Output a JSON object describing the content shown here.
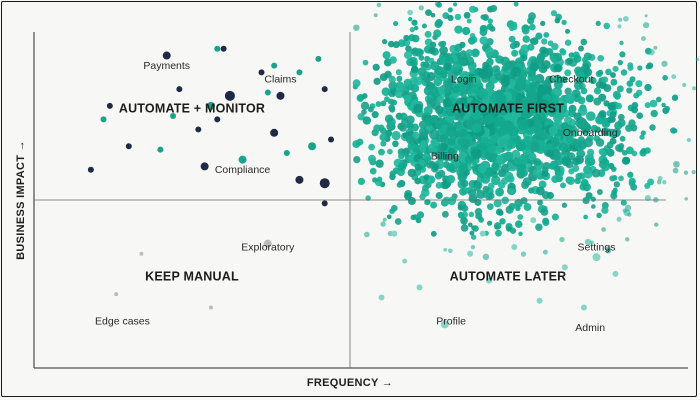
{
  "chart_data": {
    "type": "scatter",
    "title": "",
    "xlabel": "FREQUENCY →",
    "ylabel": "BUSINESS IMPACT →",
    "xlim": [
      0,
      100
    ],
    "ylim": [
      0,
      100
    ],
    "divider": {
      "x": 50,
      "y": 50
    },
    "quadrants": [
      {
        "id": "automate-monitor",
        "label": "AUTOMATE + MONITOR",
        "x": 25,
        "y": 76
      },
      {
        "id": "automate-first",
        "label": "AUTOMATE FIRST",
        "x": 75,
        "y": 76
      },
      {
        "id": "keep-manual",
        "label": "KEEP MANUAL",
        "x": 25,
        "y": 26
      },
      {
        "id": "automate-later",
        "label": "AUTOMATE LATER",
        "x": 75,
        "y": 26
      }
    ],
    "annotations": [
      {
        "text": "Payments",
        "x": 21,
        "y": 89
      },
      {
        "text": "Claims",
        "x": 39,
        "y": 85
      },
      {
        "text": "Compliance",
        "x": 33,
        "y": 58
      },
      {
        "text": "Login",
        "x": 68,
        "y": 85
      },
      {
        "text": "Checkout",
        "x": 85,
        "y": 85
      },
      {
        "text": "Billing",
        "x": 65,
        "y": 62
      },
      {
        "text": "Onboarding",
        "x": 88,
        "y": 69
      },
      {
        "text": "Exploratory",
        "x": 37,
        "y": 35
      },
      {
        "text": "Settings",
        "x": 89,
        "y": 35
      },
      {
        "text": "Edge cases",
        "x": 14,
        "y": 13
      },
      {
        "text": "Profile",
        "x": 66,
        "y": 13
      },
      {
        "text": "Admin",
        "x": 88,
        "y": 11
      }
    ],
    "series": [
      {
        "name": "automate-monitor",
        "color": "#1f2a44",
        "points": [
          [
            21,
            93,
            4
          ],
          [
            30,
            95,
            3
          ],
          [
            31,
            81,
            5
          ],
          [
            23,
            83,
            3
          ],
          [
            39,
            81,
            4
          ],
          [
            46,
            83,
            3
          ],
          [
            12,
            78,
            3
          ],
          [
            26,
            71,
            3
          ],
          [
            38,
            70,
            4
          ],
          [
            15,
            66,
            3
          ],
          [
            27,
            60,
            4
          ],
          [
            47,
            68,
            3
          ],
          [
            9,
            59,
            3
          ],
          [
            42,
            56,
            4
          ],
          [
            46,
            55,
            5
          ],
          [
            29,
            74,
            3
          ],
          [
            46,
            49,
            3
          ],
          [
            36,
            88,
            3
          ]
        ]
      },
      {
        "name": "automate-monitor-accent",
        "color": "#1aa38c",
        "points": [
          [
            29,
            95,
            3
          ],
          [
            42,
            88,
            3
          ],
          [
            28,
            78,
            4
          ],
          [
            37,
            82,
            3
          ],
          [
            22,
            75,
            3
          ],
          [
            20,
            65,
            3
          ],
          [
            33,
            62,
            4
          ],
          [
            40,
            64,
            3
          ],
          [
            44,
            66,
            4
          ],
          [
            38,
            90,
            3
          ],
          [
            45,
            92,
            3
          ],
          [
            11,
            74,
            3
          ]
        ]
      },
      {
        "name": "automate-first-seed",
        "color": "#12a88e",
        "points": [
          [
            75,
            72,
            6
          ],
          [
            72,
            74,
            5
          ],
          [
            78,
            76,
            6
          ],
          [
            70,
            78,
            4
          ],
          [
            80,
            70,
            5
          ],
          [
            68,
            70,
            4
          ],
          [
            74,
            80,
            5
          ],
          [
            82,
            78,
            4
          ],
          [
            77,
            66,
            5
          ],
          [
            66,
            76,
            4
          ],
          [
            71,
            66,
            4
          ],
          [
            84,
            72,
            4
          ],
          [
            62,
            70,
            3
          ],
          [
            86,
            66,
            3
          ],
          [
            73,
            60,
            4
          ],
          [
            79,
            84,
            4
          ],
          [
            69,
            84,
            3
          ],
          [
            88,
            80,
            3
          ]
        ]
      },
      {
        "name": "automate-later",
        "color": "#86d6c7",
        "points": [
          [
            65,
            13,
            4
          ],
          [
            87,
            18,
            3
          ],
          [
            89,
            33,
            4
          ],
          [
            71,
            40,
            3
          ],
          [
            79,
            44,
            3
          ],
          [
            84,
            30,
            3
          ],
          [
            69,
            34,
            3
          ],
          [
            76,
            36,
            3
          ],
          [
            57,
            40,
            3
          ],
          [
            61,
            24,
            3
          ],
          [
            72,
            26,
            3
          ],
          [
            80,
            20,
            3
          ],
          [
            55,
            21,
            3
          ],
          [
            92,
            28,
            3
          ]
        ]
      },
      {
        "name": "keep-manual",
        "color": "#bcbcbc",
        "points": [
          [
            37,
            37,
            4
          ],
          [
            17,
            34,
            2
          ],
          [
            28,
            18,
            2
          ],
          [
            13,
            22,
            2
          ]
        ]
      }
    ]
  }
}
